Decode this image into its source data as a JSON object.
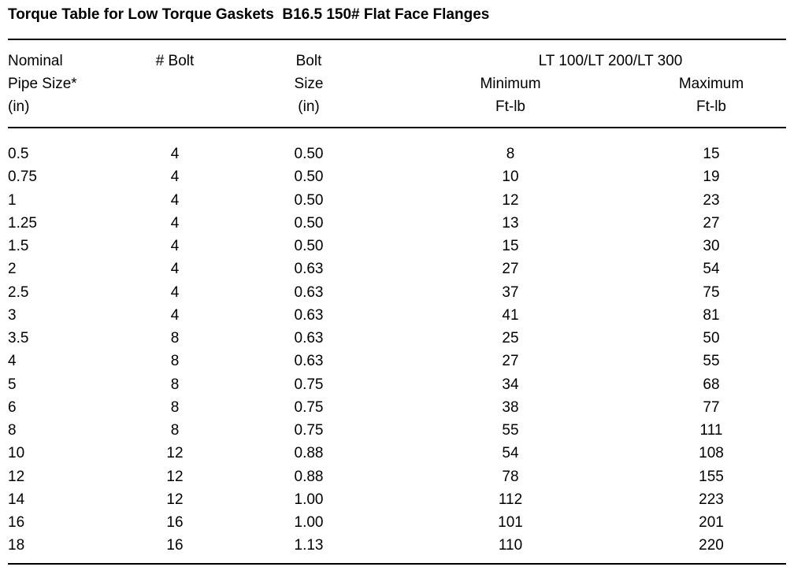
{
  "title": "Torque Table for Low Torque Gaskets  B16.5 150# Flat Face Flanges",
  "table": {
    "group_header": "LT 100/LT 200/LT 300",
    "columns": [
      [
        "Nominal",
        "Pipe Size*",
        "(in)"
      ],
      [
        "# Bolt"
      ],
      [
        "Bolt",
        "Size",
        "(in)"
      ],
      [
        "Minimum",
        "Ft-lb"
      ],
      [
        "Maximum",
        "Ft-lb"
      ]
    ],
    "rows": [
      [
        "0.5",
        "4",
        "0.50",
        "8",
        "15"
      ],
      [
        "0.75",
        "4",
        "0.50",
        "10",
        "19"
      ],
      [
        "1",
        "4",
        "0.50",
        "12",
        "23"
      ],
      [
        "1.25",
        "4",
        "0.50",
        "13",
        "27"
      ],
      [
        "1.5",
        "4",
        "0.50",
        "15",
        "30"
      ],
      [
        "2",
        "4",
        "0.63",
        "27",
        "54"
      ],
      [
        "2.5",
        "4",
        "0.63",
        "37",
        "75"
      ],
      [
        "3",
        "4",
        "0.63",
        "41",
        "81"
      ],
      [
        "3.5",
        "8",
        "0.63",
        "25",
        "50"
      ],
      [
        "4",
        "8",
        "0.63",
        "27",
        "55"
      ],
      [
        "5",
        "8",
        "0.75",
        "34",
        "68"
      ],
      [
        "6",
        "8",
        "0.75",
        "38",
        "77"
      ],
      [
        "8",
        "8",
        "0.75",
        "55",
        "111"
      ],
      [
        "10",
        "12",
        "0.88",
        "54",
        "108"
      ],
      [
        "12",
        "12",
        "0.88",
        "78",
        "155"
      ],
      [
        "14",
        "12",
        "1.00",
        "112",
        "223"
      ],
      [
        "16",
        "16",
        "1.00",
        "101",
        "201"
      ],
      [
        "18",
        "16",
        "1.13",
        "110",
        "220"
      ]
    ]
  }
}
